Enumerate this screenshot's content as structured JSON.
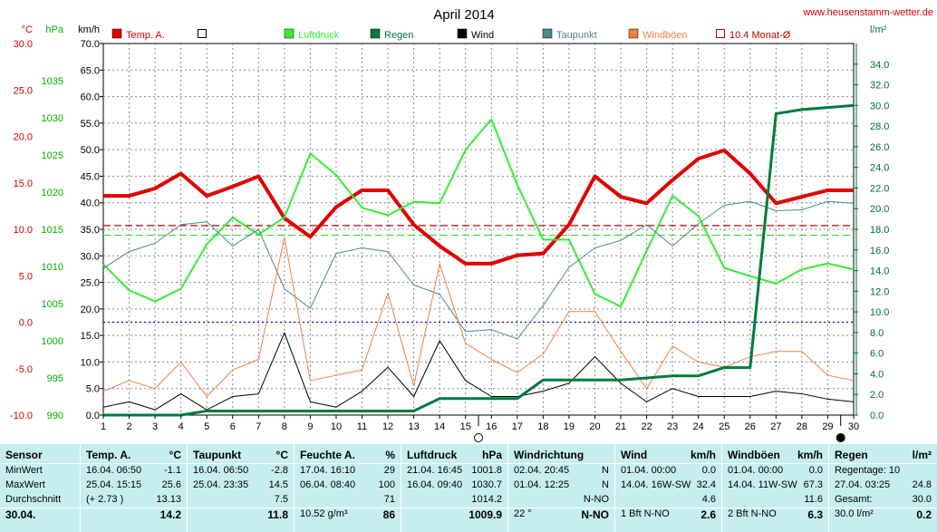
{
  "site": "www.heusenstamm-wetter.de",
  "chart_data": {
    "type": "line",
    "title": "April 2014",
    "x": [
      1,
      2,
      3,
      4,
      5,
      6,
      7,
      8,
      9,
      10,
      11,
      12,
      13,
      14,
      15,
      16,
      17,
      18,
      19,
      20,
      21,
      22,
      23,
      24,
      25,
      26,
      27,
      28,
      29,
      30
    ],
    "xticks": [
      "1",
      "2",
      "3",
      "4",
      "5",
      "6",
      "7",
      "8",
      "9",
      "10",
      "11",
      "12",
      "13",
      "14",
      "15",
      "16",
      "17",
      "18",
      "19",
      "20",
      "21",
      "22",
      "23",
      "24",
      "25",
      "26",
      "27",
      "28",
      "29",
      "30"
    ],
    "axes": {
      "temp": {
        "unit": "°C",
        "range": [
          -10,
          30
        ],
        "ticks": [
          "30.0",
          "25.0",
          "20.0",
          "15.0",
          "10.0",
          "5.0",
          "0.0",
          "-5.0",
          "-10.0"
        ],
        "color": "#d00000"
      },
      "pressure": {
        "unit": "hPa",
        "range": [
          990,
          1040
        ],
        "ticks": [
          "1035",
          "1030",
          "1025",
          "1020",
          "1015",
          "1010",
          "1005",
          "1000",
          "995",
          "990"
        ],
        "color": "#00b000"
      },
      "wind": {
        "unit": "km/h",
        "range": [
          0,
          70
        ],
        "ticks": [
          "70.0",
          "65.0",
          "60.0",
          "55.0",
          "50.0",
          "45.0",
          "40.0",
          "35.0",
          "30.0",
          "25.0",
          "20.0",
          "15.0",
          "10.0",
          "5.0",
          "0.0"
        ],
        "color": "#000000"
      },
      "rain": {
        "unit": "l/m²",
        "range": [
          0,
          36
        ],
        "ticks": [
          "34.0",
          "32.0",
          "30.0",
          "28.0",
          "26.0",
          "24.0",
          "22.0",
          "20.0",
          "18.0",
          "16.0",
          "14.0",
          "12.0",
          "10.0",
          "8.0",
          "6.0",
          "4.0",
          "2.0",
          "0.0"
        ],
        "color": "#007030"
      }
    },
    "legend": [
      {
        "name": "Temp. A.",
        "color": "#e00000",
        "style": "filled"
      },
      {
        "name": "",
        "color": "#000000",
        "style": "box"
      },
      {
        "name": "Luftdruck",
        "color": "#33ee33",
        "style": "filled"
      },
      {
        "name": "Regen",
        "color": "#007a3d",
        "style": "filled"
      },
      {
        "name": "Wind",
        "color": "#000000",
        "style": "filled"
      },
      {
        "name": "Taupunkt",
        "color": "#4a8a8c",
        "style": "filled"
      },
      {
        "name": "Windböen",
        "color": "#f08040",
        "style": "filled"
      },
      {
        "name": "10.4 Monat-Ø",
        "color": "#c00000",
        "style": "box"
      }
    ],
    "series": [
      {
        "name": "Temp. A.",
        "axis": "temp",
        "color": "#e00000",
        "width": 4,
        "values": [
          13.6,
          13.6,
          14.4,
          16.0,
          13.6,
          14.6,
          15.7,
          11.2,
          9.2,
          12.4,
          14.2,
          14.2,
          10.5,
          8.2,
          6.3,
          6.3,
          7.2,
          7.4,
          10.5,
          15.7,
          13.5,
          12.8,
          15.3,
          17.6,
          18.5,
          16.0,
          12.8,
          13.5,
          14.2,
          14.2
        ]
      },
      {
        "name": "Luftdruck",
        "axis": "pressure",
        "color": "#33ee33",
        "width": 2,
        "values": [
          1010.3,
          1006.8,
          1005.3,
          1007.0,
          1013.0,
          1016.6,
          1014.3,
          1016.6,
          1025.2,
          1022.3,
          1017.9,
          1016.9,
          1018.7,
          1018.5,
          1025.7,
          1029.8,
          1021.0,
          1013.6,
          1013.6,
          1006.3,
          1004.6,
          1012.1,
          1019.5,
          1016.8,
          1009.8,
          1008.7,
          1007.7,
          1009.6,
          1010.4,
          1009.6
        ]
      },
      {
        "name": "Taupunkt",
        "axis": "temp",
        "color": "#4a8a8c",
        "width": 1,
        "values": [
          5.8,
          7.6,
          8.5,
          10.5,
          10.8,
          8.2,
          10.0,
          3.6,
          1.5,
          7.4,
          8.0,
          7.6,
          4.0,
          3.0,
          -1.0,
          -0.8,
          -1.8,
          1.8,
          5.9,
          8.0,
          8.8,
          10.5,
          8.2,
          10.6,
          12.6,
          13.0,
          12.0,
          12.1,
          13.0,
          12.8
        ]
      },
      {
        "name": "Windböen",
        "axis": "wind",
        "color": "#f08040",
        "width": 1,
        "values": [
          4.5,
          6.5,
          5.0,
          10.0,
          3.5,
          8.5,
          10.5,
          33.5,
          6.5,
          7.5,
          8.5,
          23.0,
          5.5,
          28.5,
          13.5,
          10.5,
          8.0,
          11.5,
          19.5,
          19.5,
          12.0,
          5.0,
          13.0,
          10.0,
          9.0,
          11.0,
          12.0,
          12.0,
          7.5,
          6.5
        ]
      },
      {
        "name": "Wind",
        "axis": "wind",
        "color": "#000000",
        "width": 1,
        "values": [
          1.5,
          2.5,
          1.0,
          4.0,
          1.0,
          3.5,
          4.0,
          15.5,
          2.5,
          1.5,
          4.5,
          9.0,
          3.5,
          14.0,
          6.5,
          3.5,
          3.5,
          4.5,
          6.0,
          11.0,
          6.0,
          2.5,
          5.0,
          3.5,
          3.5,
          3.5,
          4.5,
          4.0,
          3.0,
          2.5
        ]
      },
      {
        "name": "Regen",
        "axis": "rain",
        "color": "#007a3d",
        "width": 3,
        "values": [
          0,
          0,
          0,
          0,
          0.4,
          0.4,
          0.4,
          0.4,
          0.4,
          0.4,
          0.4,
          0.4,
          0.4,
          1.6,
          1.6,
          1.6,
          1.6,
          3.4,
          3.4,
          3.4,
          3.4,
          3.6,
          3.8,
          3.8,
          4.6,
          4.6,
          29.2,
          29.6,
          29.8,
          30.0
        ]
      }
    ],
    "reference_lines": [
      {
        "axis": "temp",
        "value": 10.4,
        "color": "#c00000",
        "style": "dashed"
      },
      {
        "axis": "pressure",
        "value": 1014.2,
        "color": "#33dd33",
        "style": "dashed"
      },
      {
        "axis": "temp",
        "value": 0.0,
        "color": "#0000cc",
        "style": "dotted"
      }
    ],
    "markers": [
      {
        "x": 15.5,
        "kind": "hollow-circle"
      },
      {
        "x": 29.5,
        "kind": "filled-circle"
      }
    ],
    "grid": true
  },
  "stats": {
    "columns": [
      {
        "key": "sensor",
        "title": "Sensor",
        "unit": "",
        "rows": [
          "MinWert",
          "MaxWert",
          "Durchschnitt",
          "30.04."
        ]
      },
      {
        "key": "temp",
        "title": "Temp. A.",
        "unit": "°C",
        "rows": [
          [
            "16.04.  06:50",
            "-1.1"
          ],
          [
            "25.04.  15:15",
            "25.6"
          ],
          [
            "(+ 2.73 )",
            "13.13"
          ],
          [
            "",
            "14.2"
          ]
        ]
      },
      {
        "key": "dew",
        "title": "Taupunkt",
        "unit": "°C",
        "rows": [
          [
            "16.04.  06:50",
            "-2.8"
          ],
          [
            "25.04.  23:35",
            "14.5"
          ],
          [
            "",
            "7.5"
          ],
          [
            "",
            "11.8"
          ]
        ]
      },
      {
        "key": "humidity",
        "title": "Feuchte A.",
        "unit": "%",
        "rows": [
          [
            "17.04.  16:10",
            "29"
          ],
          [
            "06.04.  08:40",
            "100"
          ],
          [
            "",
            "71"
          ],
          [
            "10.52 g/m³",
            "86"
          ]
        ]
      },
      {
        "key": "pressure",
        "title": "Luftdruck",
        "unit": "hPa",
        "rows": [
          [
            "21.04.  16:45",
            "1001.8"
          ],
          [
            "16.04.  09:40",
            "1030.7"
          ],
          [
            "",
            "1014.2"
          ],
          [
            "",
            "1009.9"
          ]
        ]
      },
      {
        "key": "winddir",
        "title": "Windrichtung",
        "unit": "",
        "rows": [
          [
            "02.04.  20:45",
            "N"
          ],
          [
            "01.04.  12:25",
            "N"
          ],
          [
            "",
            "N-NO"
          ],
          [
            "22 °",
            "N-NO"
          ]
        ]
      },
      {
        "key": "wind",
        "title": "Wind",
        "unit": "km/h",
        "rows": [
          [
            "01.04.  00:00",
            "0.0"
          ],
          [
            "14.04.  16W-SW",
            "32.4"
          ],
          [
            "",
            "4.6"
          ],
          [
            "1 Bft N-NO",
            "2.6"
          ]
        ]
      },
      {
        "key": "gust",
        "title": "Windböen",
        "unit": "km/h",
        "rows": [
          [
            "01.04.  00:00",
            "0.0"
          ],
          [
            "14.04.  11W-SW",
            "67.3"
          ],
          [
            "",
            "11.6"
          ],
          [
            "2 Bft N-NO",
            "6.3"
          ]
        ]
      },
      {
        "key": "rain",
        "title": "Regen",
        "unit": "l/m²",
        "rows": [
          [
            "Regentage: 10",
            ""
          ],
          [
            "27.04.  03:25",
            "24.8"
          ],
          [
            "Gesamt:",
            "30.0"
          ],
          [
            "30.0 l/m²",
            "0.2"
          ]
        ]
      }
    ]
  }
}
